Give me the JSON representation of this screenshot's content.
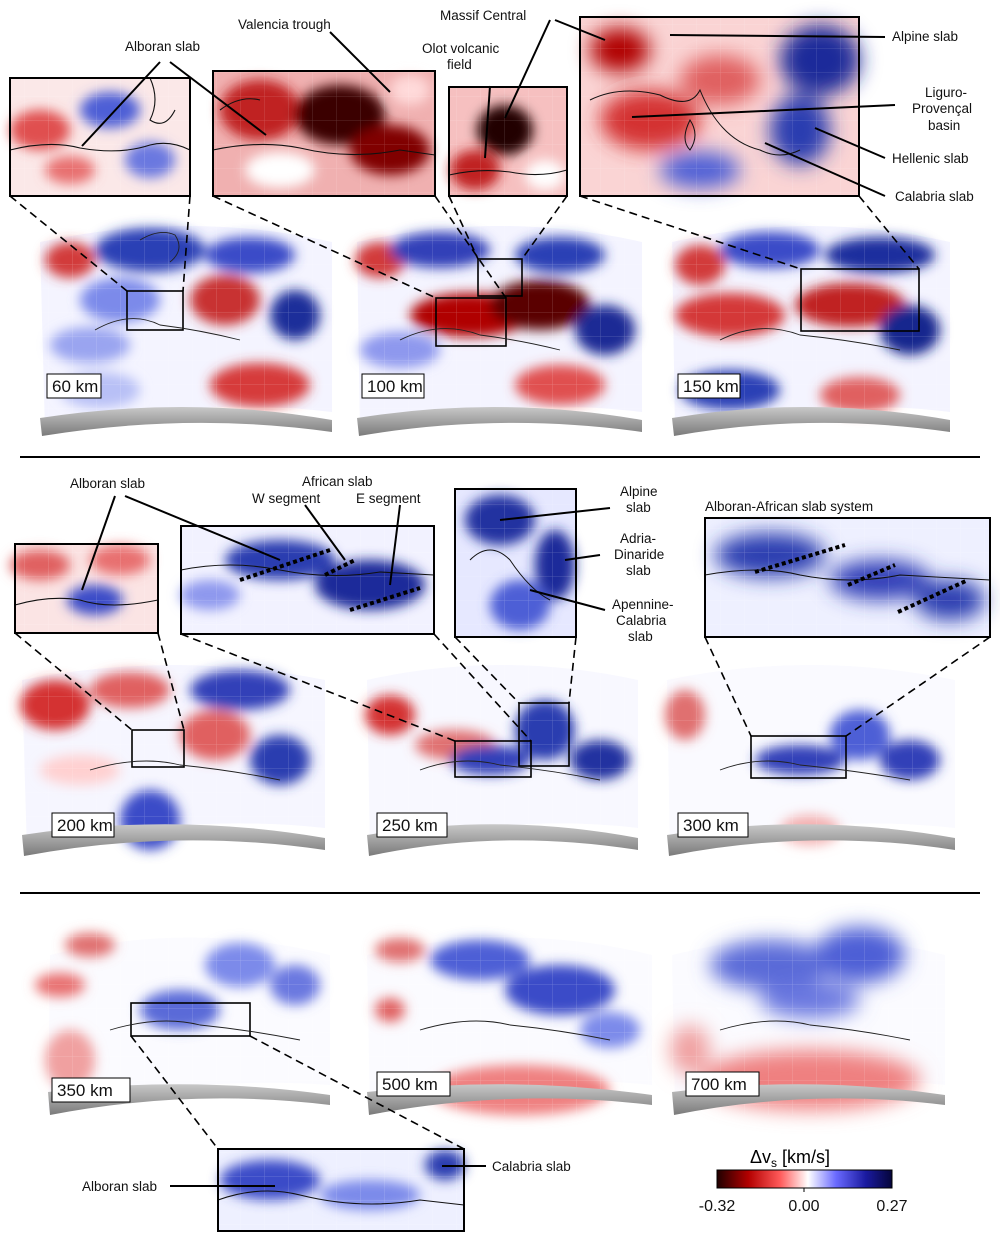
{
  "colorbar": {
    "label_base": "Δv",
    "label_sub": "s",
    "label_units": " [km/s]",
    "ticks": [
      "-0.32",
      "0.00",
      "0.27"
    ],
    "colors": {
      "negative": "#b0000a",
      "mid": "#ffffff",
      "positive": "#1a1aa0",
      "darkest_neg": "#200000",
      "darkest_pos": "#05053a"
    }
  },
  "depth_maps": [
    {
      "label": "60 km"
    },
    {
      "label": "100 km"
    },
    {
      "label": "150 km"
    },
    {
      "label": "200 km"
    },
    {
      "label": "250 km"
    },
    {
      "label": "300 km"
    },
    {
      "label": "350 km"
    },
    {
      "label": "500 km"
    },
    {
      "label": "700 km"
    }
  ],
  "annotations": {
    "row1": [
      "Alboran slab",
      "Valencia trough",
      "Massif Central",
      "Olot volcanic",
      "field",
      "Alpine slab",
      "Liguro-",
      "Provençal",
      "basin",
      "Hellenic slab",
      "Calabria slab"
    ],
    "row2": [
      "Alboran slab",
      "African slab",
      "W segment",
      "E segment",
      "Alpine",
      "slab",
      "Adria-",
      "Dinaride",
      "slab",
      "Apennine-",
      "Calabria",
      "slab",
      "Alboran-African slab system"
    ],
    "row3": [
      "Alboran slab",
      "Calabria slab"
    ]
  }
}
